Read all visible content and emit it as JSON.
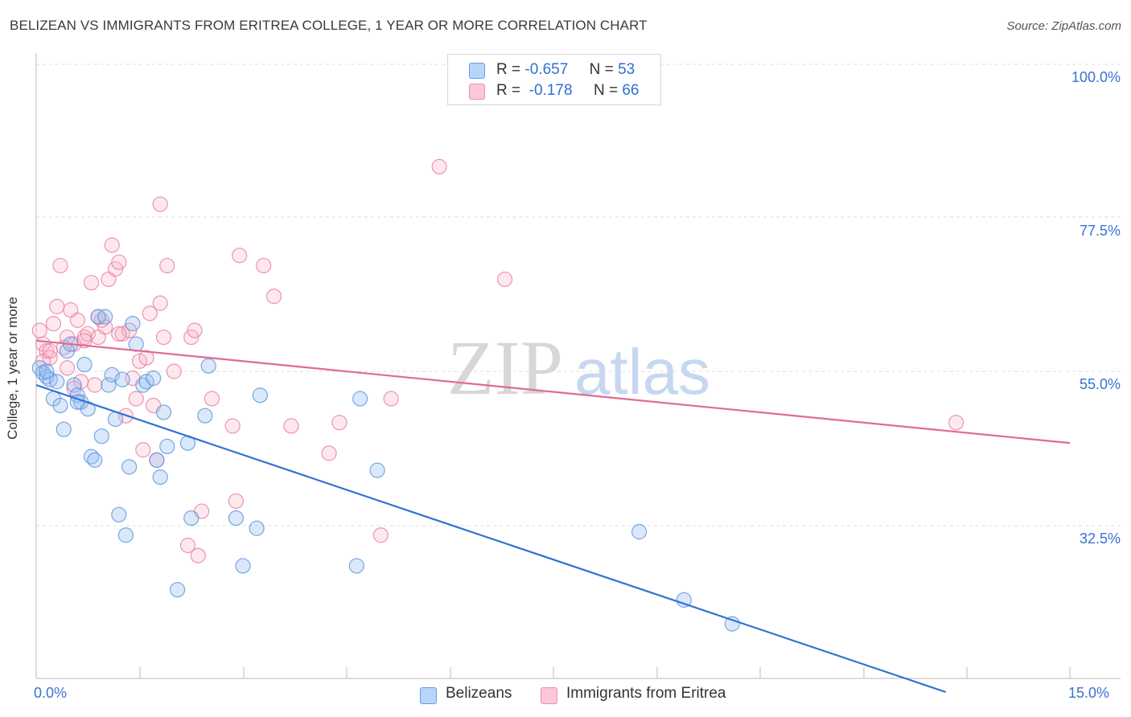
{
  "title": "BELIZEAN VS IMMIGRANTS FROM ERITREA COLLEGE, 1 YEAR OR MORE CORRELATION CHART",
  "source": "Source: ZipAtlas.com",
  "watermark": {
    "zip": "ZIP",
    "atlas": "atlas"
  },
  "legend": {
    "r_label": "R =",
    "n_label": "N =",
    "rows": [
      {
        "r": "-0.657",
        "n": "53",
        "color": "#a8c8f0",
        "border": "#6a9de0"
      },
      {
        "r": "-0.178",
        "n": "66",
        "color": "#f8c0d0",
        "border": "#e890aa"
      }
    ]
  },
  "bottom_legend": [
    {
      "label": "Belizeans",
      "color": "#b8d4f8",
      "border": "#6a9de0"
    },
    {
      "label": "Immigrants from Eritrea",
      "color": "#fcc8d8",
      "border": "#e890aa"
    }
  ],
  "chart_data": {
    "type": "scatter",
    "title": "BELIZEAN VS IMMIGRANTS FROM ERITREA COLLEGE, 1 YEAR OR MORE CORRELATION CHART",
    "xlabel": "",
    "ylabel": "College, 1 year or more",
    "xlim": [
      0,
      15
    ],
    "ylim": [
      10,
      105
    ],
    "x_tick_labels": [
      "0.0%",
      "15.0%"
    ],
    "y_ticks": [
      100,
      77.5,
      55,
      32.5
    ],
    "y_tick_labels": [
      "100.0%",
      "77.5%",
      "55.0%",
      "32.5%"
    ],
    "grid": "horizontal dashed",
    "series": [
      {
        "name": "Belizeans",
        "color": "#5a92dc",
        "fill": "rgba(150,190,240,0.35)",
        "trend": {
          "x": [
            0,
            13.2
          ],
          "y": [
            55.0,
            10.0
          ]
        },
        "points": [
          [
            0.05,
            57.5
          ],
          [
            0.1,
            56.8
          ],
          [
            0.15,
            56.2
          ],
          [
            0.2,
            55.8
          ],
          [
            0.25,
            53.0
          ],
          [
            0.35,
            52.0
          ],
          [
            0.4,
            48.5
          ],
          [
            0.45,
            60.0
          ],
          [
            0.5,
            61.0
          ],
          [
            0.55,
            55.0
          ],
          [
            0.6,
            53.5
          ],
          [
            0.65,
            52.5
          ],
          [
            0.7,
            58.0
          ],
          [
            0.75,
            51.5
          ],
          [
            0.8,
            44.5
          ],
          [
            0.85,
            44.0
          ],
          [
            0.9,
            65.0
          ],
          [
            0.95,
            47.5
          ],
          [
            1.0,
            65.0
          ],
          [
            1.05,
            55.0
          ],
          [
            1.1,
            56.5
          ],
          [
            1.15,
            50.0
          ],
          [
            1.2,
            36.0
          ],
          [
            1.25,
            55.8
          ],
          [
            1.3,
            33.0
          ],
          [
            1.35,
            43.0
          ],
          [
            1.4,
            64.0
          ],
          [
            1.45,
            61.0
          ],
          [
            1.55,
            55.0
          ],
          [
            1.6,
            55.5
          ],
          [
            1.7,
            56.0
          ],
          [
            1.75,
            44.0
          ],
          [
            1.8,
            41.5
          ],
          [
            1.85,
            51.0
          ],
          [
            1.9,
            46.0
          ],
          [
            2.2,
            46.5
          ],
          [
            2.25,
            35.5
          ],
          [
            2.05,
            25.0
          ],
          [
            2.45,
            50.5
          ],
          [
            2.5,
            57.8
          ],
          [
            2.9,
            35.5
          ],
          [
            3.0,
            28.5
          ],
          [
            3.2,
            34.0
          ],
          [
            3.25,
            53.5
          ],
          [
            4.65,
            28.5
          ],
          [
            4.7,
            53.0
          ],
          [
            4.95,
            42.5
          ],
          [
            8.75,
            33.5
          ],
          [
            9.4,
            23.5
          ],
          [
            10.1,
            20.0
          ],
          [
            0.15,
            57.0
          ],
          [
            0.3,
            55.5
          ],
          [
            0.6,
            52.5
          ]
        ]
      },
      {
        "name": "Immigrants from Eritrea",
        "color": "#e87ba0",
        "fill": "rgba(248,180,200,0.30)",
        "trend": {
          "x": [
            0,
            15
          ],
          "y": [
            61.5,
            46.5
          ]
        },
        "points": [
          [
            0.05,
            63.0
          ],
          [
            0.1,
            61.0
          ],
          [
            0.15,
            60.0
          ],
          [
            0.2,
            59.0
          ],
          [
            0.25,
            64.0
          ],
          [
            0.3,
            66.5
          ],
          [
            0.35,
            72.5
          ],
          [
            0.4,
            60.5
          ],
          [
            0.45,
            62.0
          ],
          [
            0.5,
            66.0
          ],
          [
            0.55,
            61.0
          ],
          [
            0.6,
            64.5
          ],
          [
            0.65,
            55.5
          ],
          [
            0.7,
            62.0
          ],
          [
            0.75,
            62.5
          ],
          [
            0.8,
            70.0
          ],
          [
            0.85,
            55.0
          ],
          [
            0.9,
            62.0
          ],
          [
            0.95,
            64.5
          ],
          [
            1.0,
            63.5
          ],
          [
            1.05,
            70.5
          ],
          [
            1.1,
            75.5
          ],
          [
            1.15,
            72.0
          ],
          [
            1.2,
            73.0
          ],
          [
            1.25,
            62.5
          ],
          [
            1.3,
            50.5
          ],
          [
            1.35,
            63.0
          ],
          [
            1.4,
            56.0
          ],
          [
            1.45,
            53.0
          ],
          [
            1.5,
            58.5
          ],
          [
            1.55,
            45.5
          ],
          [
            1.6,
            59.0
          ],
          [
            1.65,
            65.5
          ],
          [
            1.7,
            52.0
          ],
          [
            1.75,
            44.0
          ],
          [
            1.8,
            67.0
          ],
          [
            1.85,
            62.0
          ],
          [
            1.9,
            72.5
          ],
          [
            2.0,
            57.0
          ],
          [
            2.2,
            31.5
          ],
          [
            2.25,
            62.0
          ],
          [
            2.3,
            63.0
          ],
          [
            2.35,
            30.0
          ],
          [
            2.4,
            36.5
          ],
          [
            2.55,
            53.0
          ],
          [
            2.85,
            49.0
          ],
          [
            2.9,
            38.0
          ],
          [
            2.95,
            74.0
          ],
          [
            3.3,
            72.5
          ],
          [
            3.45,
            68.0
          ],
          [
            3.7,
            49.0
          ],
          [
            4.25,
            45.0
          ],
          [
            4.4,
            49.5
          ],
          [
            5.0,
            33.0
          ],
          [
            5.15,
            53.0
          ],
          [
            5.85,
            87.0
          ],
          [
            6.8,
            70.5
          ],
          [
            13.35,
            49.5
          ],
          [
            1.8,
            81.5
          ],
          [
            0.1,
            58.5
          ],
          [
            0.2,
            60.0
          ],
          [
            0.45,
            57.5
          ],
          [
            0.55,
            54.5
          ],
          [
            0.7,
            61.5
          ],
          [
            0.9,
            65.0
          ],
          [
            1.2,
            62.5
          ]
        ]
      }
    ]
  }
}
